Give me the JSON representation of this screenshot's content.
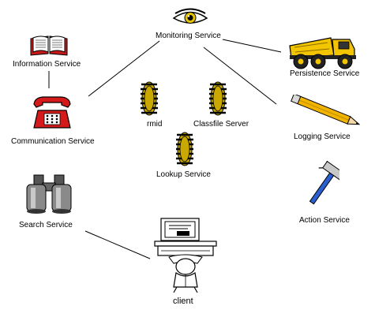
{
  "nodes": {
    "monitoring": {
      "label": "Monitoring Service",
      "icon": "eye-icon"
    },
    "information": {
      "label": "Information Service",
      "icon": "open-book-icon"
    },
    "persistence": {
      "label": "Persistence Service",
      "icon": "dump-truck-icon"
    },
    "communication": {
      "label": "Communication Service",
      "icon": "telephone-icon"
    },
    "rmid": {
      "label": "rmid",
      "icon": "gear-icon"
    },
    "classfile": {
      "label": "Classfile Server",
      "icon": "gear-icon"
    },
    "lookup": {
      "label": "Lookup Service",
      "icon": "gear-icon"
    },
    "logging": {
      "label": "Logging Service",
      "icon": "pencil-icon"
    },
    "search": {
      "label": "Search Service",
      "icon": "binoculars-icon"
    },
    "action": {
      "label": "Action Service",
      "icon": "hammer-icon"
    },
    "client": {
      "label": "client",
      "icon": "computer-user-icon"
    }
  },
  "edges": [
    [
      "monitoring",
      "communication"
    ],
    [
      "monitoring",
      "persistence"
    ],
    [
      "monitoring",
      "logging"
    ],
    [
      "information",
      "communication"
    ],
    [
      "search",
      "client"
    ]
  ],
  "colors": {
    "line": "#000000",
    "gear": "#c9a800",
    "truck": "#f2c500",
    "phone": "#d41a1a",
    "pencil": "#f0b400",
    "book": "#c41a1a",
    "hammer": "#2a5fd0"
  }
}
